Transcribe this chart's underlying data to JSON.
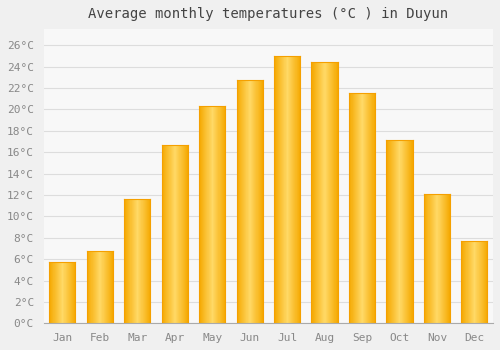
{
  "title": "Average monthly temperatures (°C ) in Duyun",
  "months": [
    "Jan",
    "Feb",
    "Mar",
    "Apr",
    "May",
    "Jun",
    "Jul",
    "Aug",
    "Sep",
    "Oct",
    "Nov",
    "Dec"
  ],
  "temperatures": [
    5.7,
    6.8,
    11.6,
    16.7,
    20.3,
    22.7,
    25.0,
    24.4,
    21.5,
    17.1,
    12.1,
    7.7
  ],
  "bar_color_left": "#F5A800",
  "bar_color_center": "#FFD966",
  "bar_color_right": "#F5A800",
  "background_color": "#F0F0F0",
  "plot_bg_color": "#F8F8F8",
  "grid_color": "#DDDDDD",
  "yticks": [
    0,
    2,
    4,
    6,
    8,
    10,
    12,
    14,
    16,
    18,
    20,
    22,
    24,
    26
  ],
  "ylim": [
    0,
    27.5
  ],
  "title_fontsize": 10,
  "tick_fontsize": 8,
  "tick_color": "#888888",
  "title_color": "#444444",
  "spine_color": "#AAAAAA"
}
